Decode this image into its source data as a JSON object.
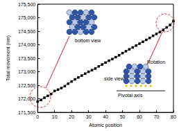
{
  "chart_data": {
    "type": "line",
    "marker": "square",
    "color": "#000000",
    "x_label": "Atomic position",
    "y_label": "Total movement (nm)",
    "x": [
      0,
      2,
      4,
      6,
      8,
      10,
      12,
      14,
      16,
      18,
      20,
      22,
      24,
      26,
      28,
      30,
      32,
      34,
      36,
      38,
      40,
      42,
      44,
      46,
      48,
      50,
      52,
      54,
      56,
      58,
      60,
      62,
      64,
      66,
      68,
      70,
      72,
      74,
      76,
      78,
      80
    ],
    "values": [
      171900,
      171960,
      172040,
      172110,
      172180,
      172290,
      172340,
      172400,
      172470,
      172560,
      172640,
      172720,
      172790,
      172860,
      172930,
      173000,
      173060,
      173120,
      173200,
      173270,
      173340,
      173410,
      173470,
      173540,
      173610,
      173690,
      173760,
      173830,
      173900,
      173970,
      174040,
      174110,
      174180,
      174250,
      174330,
      174400,
      174470,
      174550,
      174640,
      174730,
      174880
    ],
    "xlim": [
      0,
      80
    ],
    "xticks": [
      0,
      10,
      20,
      30,
      40,
      50,
      60,
      70,
      80
    ],
    "ylim": [
      171500,
      175500
    ],
    "yticks": [
      171500,
      172000,
      172500,
      173000,
      173500,
      174000,
      174500,
      175000,
      175500
    ],
    "grid": false,
    "annotations": [
      "bottom view",
      "side view",
      "Rotation",
      "Pivotal axis"
    ]
  }
}
